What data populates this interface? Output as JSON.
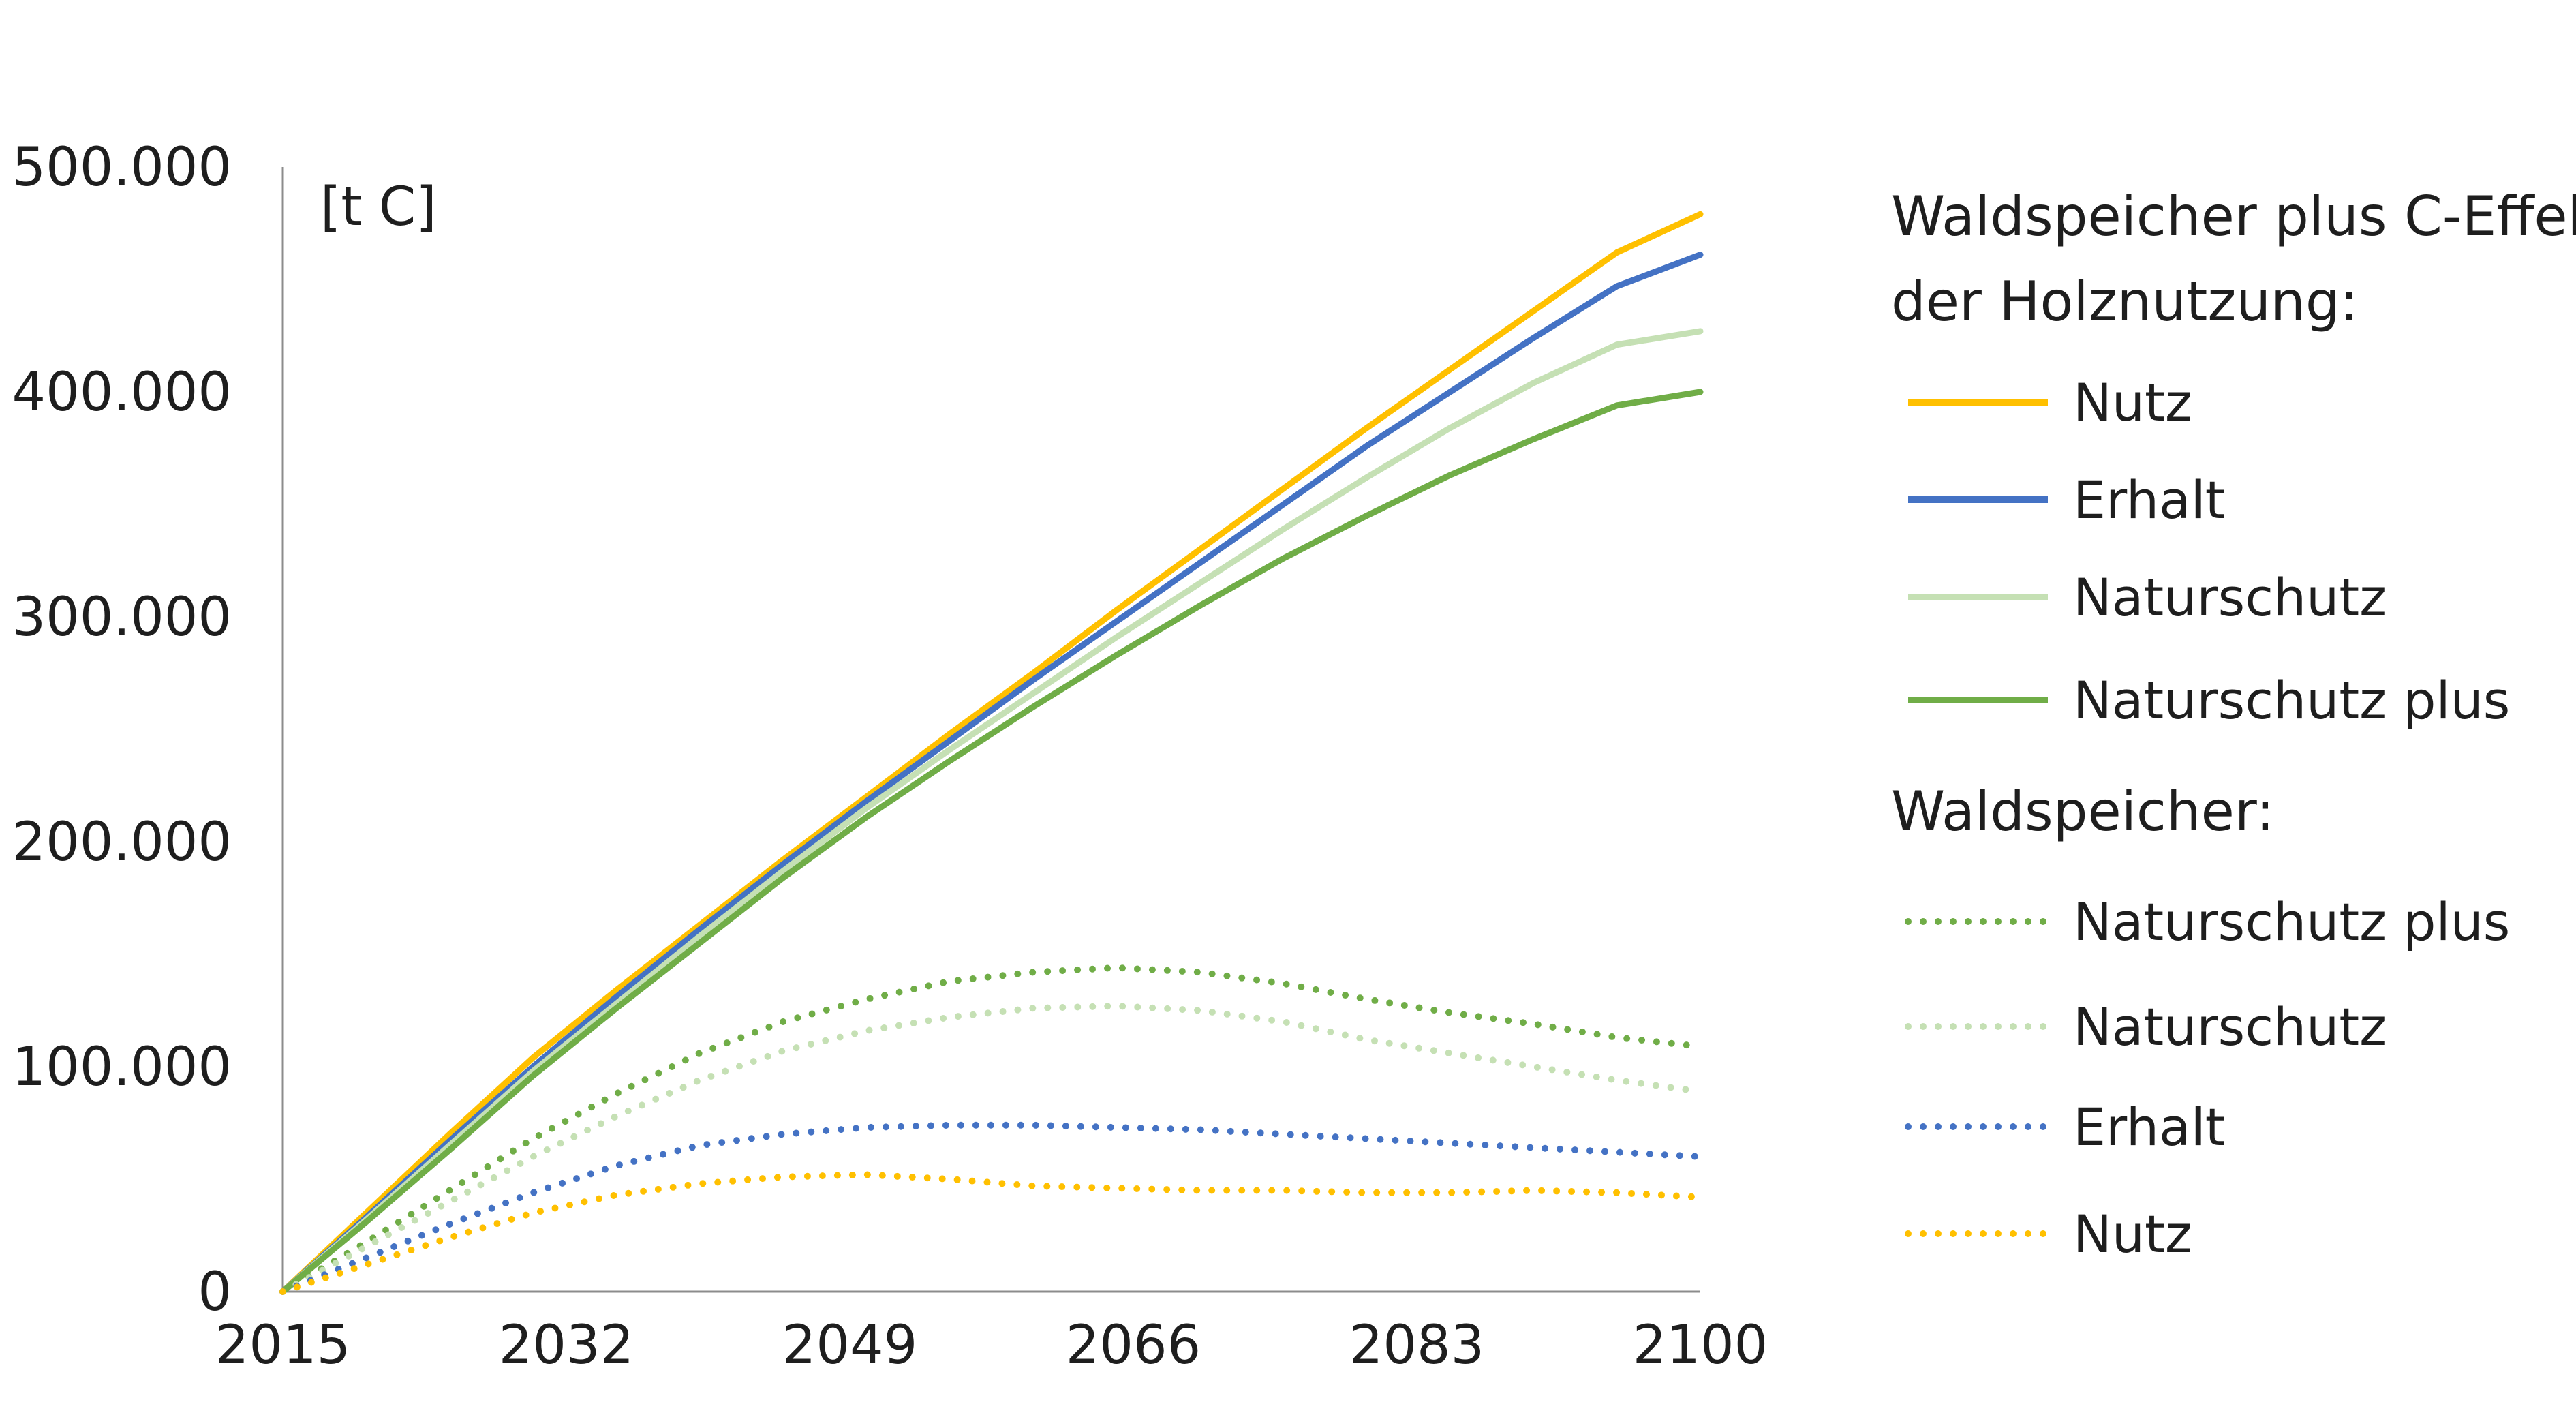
{
  "chart_data": {
    "type": "line",
    "unit_label": "[t C]",
    "x": [
      2015,
      2020,
      2025,
      2030,
      2035,
      2040,
      2045,
      2050,
      2055,
      2060,
      2065,
      2070,
      2075,
      2080,
      2085,
      2090,
      2095,
      2100
    ],
    "x_ticks": [
      "2015",
      "2032",
      "2049",
      "2066",
      "2083",
      "2100"
    ],
    "x_tick_values": [
      2015,
      2032,
      2049,
      2066,
      2083,
      2100
    ],
    "xlim": [
      2015,
      2100
    ],
    "y_ticks": [
      "0",
      "100.000",
      "200.000",
      "300.000",
      "400.000",
      "500.000"
    ],
    "y_tick_values": [
      0,
      100000,
      200000,
      300000,
      400000,
      500000
    ],
    "ylim": [
      0,
      500000
    ],
    "grid": false,
    "legend_position": "right",
    "legend_group_titles": [
      "Waldspeicher plus C-Effekte der Holznutzung:",
      "Waldspeicher:"
    ],
    "series": [
      {
        "name": "Nutz",
        "group": 0,
        "style": "solid",
        "color": "#FFC000",
        "values": [
          0,
          35000,
          70000,
          104000,
          134000,
          163000,
          192000,
          220000,
          248000,
          275000,
          303000,
          330000,
          357000,
          384000,
          410000,
          436000,
          462000,
          479000
        ]
      },
      {
        "name": "Erhalt",
        "group": 0,
        "style": "solid",
        "color": "#4472C4",
        "values": [
          0,
          33000,
          67000,
          100000,
          131000,
          161000,
          190000,
          218000,
          245000,
          272000,
          298000,
          324000,
          350000,
          376000,
          400000,
          424000,
          447000,
          461000
        ]
      },
      {
        "name": "Naturschutz",
        "group": 0,
        "style": "solid",
        "color": "#C5E0B4",
        "values": [
          0,
          32000,
          65000,
          98000,
          128000,
          158000,
          187000,
          215000,
          241000,
          266000,
          291000,
          315000,
          339000,
          362000,
          384000,
          404000,
          421000,
          427000
        ]
      },
      {
        "name": "Naturschutz plus",
        "group": 0,
        "style": "solid",
        "color": "#70AD47",
        "values": [
          0,
          31000,
          63000,
          96000,
          126000,
          155000,
          184000,
          211000,
          236000,
          260000,
          283000,
          305000,
          326000,
          345000,
          363000,
          379000,
          394000,
          400000
        ]
      },
      {
        "name": "Naturschutz plus",
        "group": 1,
        "style": "dotted",
        "color": "#70AD47",
        "values": [
          0,
          22000,
          45000,
          68000,
          88000,
          106000,
          120000,
          130000,
          138000,
          142000,
          144000,
          142000,
          137000,
          130000,
          124000,
          119000,
          113000,
          109000
        ]
      },
      {
        "name": "Naturschutz",
        "group": 1,
        "style": "dotted",
        "color": "#C5E0B4",
        "values": [
          0,
          20000,
          40000,
          60000,
          78000,
          94000,
          107000,
          116000,
          122000,
          126000,
          127000,
          125000,
          120000,
          112000,
          106000,
          100000,
          94000,
          89000
        ]
      },
      {
        "name": "Erhalt",
        "group": 1,
        "style": "dotted",
        "color": "#4472C4",
        "values": [
          0,
          15000,
          30000,
          44000,
          56000,
          65000,
          70000,
          73000,
          74000,
          74000,
          73000,
          72000,
          70000,
          68000,
          66000,
          64000,
          62000,
          60000
        ]
      },
      {
        "name": "Nutz",
        "group": 1,
        "style": "dotted",
        "color": "#FFC000",
        "values": [
          0,
          12000,
          24000,
          35000,
          43000,
          48000,
          51000,
          52000,
          50000,
          47000,
          46000,
          45000,
          45000,
          44000,
          44000,
          45000,
          44000,
          42000
        ]
      }
    ]
  }
}
